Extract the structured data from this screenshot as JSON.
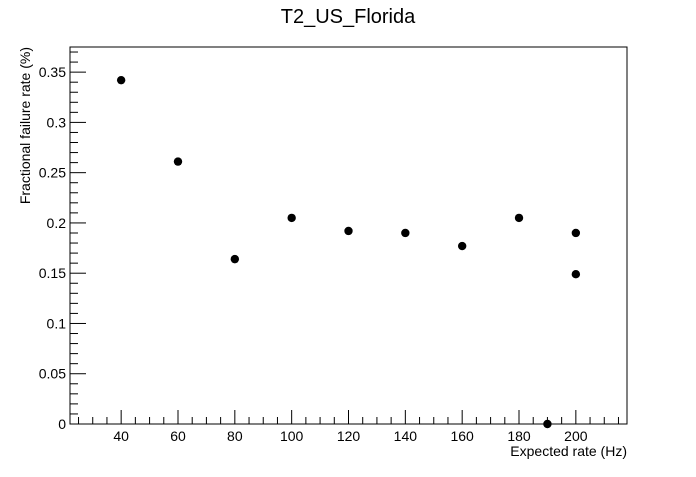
{
  "chart_data": {
    "type": "scatter",
    "title": "T2_US_Florida",
    "xlabel": "Expected rate (Hz)",
    "ylabel": "Fractional failure rate (%)",
    "xlim": [
      22,
      218
    ],
    "ylim": [
      0,
      0.375
    ],
    "x_ticks": [
      40,
      60,
      80,
      100,
      120,
      140,
      160,
      180,
      200
    ],
    "y_ticks": [
      0,
      0.05,
      0.1,
      0.15,
      0.2,
      0.25,
      0.3,
      0.35
    ],
    "x_tick_labels": [
      "40",
      "60",
      "80",
      "100",
      "120",
      "140",
      "160",
      "180",
      "200"
    ],
    "y_tick_labels": [
      "0",
      "0.05",
      "0.1",
      "0.15",
      "0.2",
      "0.25",
      "0.3",
      "0.35"
    ],
    "grid": false,
    "legend": "none",
    "marker_color": "#000000",
    "points": [
      {
        "x": 40,
        "y": 0.342
      },
      {
        "x": 60,
        "y": 0.261
      },
      {
        "x": 80,
        "y": 0.164
      },
      {
        "x": 100,
        "y": 0.205
      },
      {
        "x": 120,
        "y": 0.192
      },
      {
        "x": 140,
        "y": 0.19
      },
      {
        "x": 160,
        "y": 0.177
      },
      {
        "x": 180,
        "y": 0.205
      },
      {
        "x": 190,
        "y": 0.0
      },
      {
        "x": 200,
        "y": 0.19
      },
      {
        "x": 200,
        "y": 0.149
      }
    ]
  }
}
